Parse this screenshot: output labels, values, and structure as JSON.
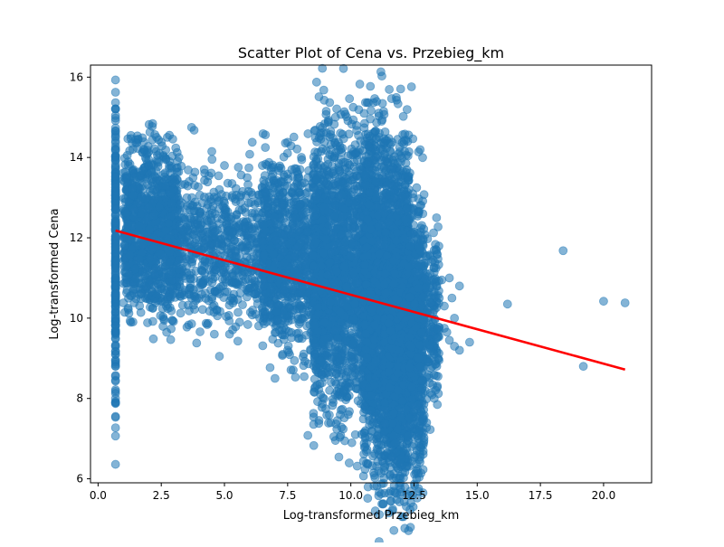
{
  "chart_data": {
    "type": "scatter",
    "title": "Scatter Plot of Cena vs. Przebieg_km",
    "xlabel": "Log-transformed Przebieg_km",
    "ylabel": "Log-transformed Cena",
    "xlim": [
      -0.3,
      21.9
    ],
    "ylim": [
      5.9,
      16.3
    ],
    "x_ticks": [
      0.0,
      2.5,
      5.0,
      7.5,
      10.0,
      12.5,
      15.0,
      17.5,
      20.0
    ],
    "x_tick_labels": [
      "0.0",
      "2.5",
      "5.0",
      "7.5",
      "10.0",
      "12.5",
      "15.0",
      "17.5",
      "20.0"
    ],
    "y_ticks": [
      6,
      8,
      10,
      12,
      14,
      16
    ],
    "y_tick_labels": [
      "6",
      "8",
      "10",
      "12",
      "14",
      "16"
    ],
    "grid": false,
    "point_color": "#1f77b4",
    "point_alpha": 0.55,
    "line_color": "#ff0000",
    "regression_line": {
      "x": [
        0.69,
        20.85
      ],
      "y": [
        12.18,
        8.72
      ]
    },
    "dense_regions": [
      {
        "x": [
          0.69,
          0.69
        ],
        "y": [
          8.9,
          14.3
        ],
        "count": 260
      },
      {
        "x": [
          1.0,
          3.2
        ],
        "y": [
          10.6,
          13.7
        ],
        "count": 1100
      },
      {
        "x": [
          3.2,
          7.0
        ],
        "y": [
          10.4,
          13.0
        ],
        "count": 700
      },
      {
        "x": [
          6.5,
          9.0
        ],
        "y": [
          9.8,
          13.3
        ],
        "count": 1000
      },
      {
        "x": [
          8.5,
          11.0
        ],
        "y": [
          8.6,
          13.8
        ],
        "count": 1900
      },
      {
        "x": [
          10.5,
          12.3
        ],
        "y": [
          7.2,
          13.6
        ],
        "count": 1900
      },
      {
        "x": [
          11.3,
          12.9
        ],
        "y": [
          6.8,
          12.4
        ],
        "count": 1400
      },
      {
        "x": [
          12.3,
          13.5
        ],
        "y": [
          8.5,
          11.4
        ],
        "count": 350
      }
    ],
    "points": [
      {
        "x": 0.69,
        "y": 6.36
      },
      {
        "x": 12.4,
        "y": 15.76
      },
      {
        "x": 3.7,
        "y": 14.75
      },
      {
        "x": 3.8,
        "y": 14.68
      },
      {
        "x": 1.3,
        "y": 14.55
      },
      {
        "x": 1.3,
        "y": 14.47
      },
      {
        "x": 2.5,
        "y": 14.38
      },
      {
        "x": 1.8,
        "y": 14.2
      },
      {
        "x": 4.5,
        "y": 14.15
      },
      {
        "x": 6.1,
        "y": 14.38
      },
      {
        "x": 7.5,
        "y": 14.38
      },
      {
        "x": 8.9,
        "y": 14.62
      },
      {
        "x": 10.3,
        "y": 14.55
      },
      {
        "x": 6.0,
        "y": 14.08
      },
      {
        "x": 3.2,
        "y": 14.0
      },
      {
        "x": 2.0,
        "y": 13.95
      },
      {
        "x": 4.2,
        "y": 13.7
      },
      {
        "x": 5.0,
        "y": 13.8
      },
      {
        "x": 5.9,
        "y": 13.5
      },
      {
        "x": 6.5,
        "y": 13.8
      },
      {
        "x": 1.2,
        "y": 13.8
      },
      {
        "x": 3.6,
        "y": 13.4
      },
      {
        "x": 4.8,
        "y": 13.2
      },
      {
        "x": 5.3,
        "y": 13.35
      },
      {
        "x": 6.6,
        "y": 13.55
      },
      {
        "x": 9.6,
        "y": 14.2
      },
      {
        "x": 11.0,
        "y": 14.0
      },
      {
        "x": 11.6,
        "y": 13.7
      },
      {
        "x": 3.3,
        "y": 10.6
      },
      {
        "x": 2.7,
        "y": 10.3
      },
      {
        "x": 3.9,
        "y": 9.38
      },
      {
        "x": 4.8,
        "y": 9.05
      },
      {
        "x": 4.6,
        "y": 9.6
      },
      {
        "x": 5.2,
        "y": 9.6
      },
      {
        "x": 5.6,
        "y": 9.9
      },
      {
        "x": 4.7,
        "y": 10.2
      },
      {
        "x": 6.4,
        "y": 10.0
      },
      {
        "x": 7.0,
        "y": 8.5
      },
      {
        "x": 7.3,
        "y": 9.1
      },
      {
        "x": 7.5,
        "y": 9.2
      },
      {
        "x": 8.3,
        "y": 7.08
      },
      {
        "x": 9.6,
        "y": 7.08
      },
      {
        "x": 8.8,
        "y": 8.1
      },
      {
        "x": 9.3,
        "y": 7.9
      },
      {
        "x": 9.9,
        "y": 7.6
      },
      {
        "x": 10.9,
        "y": 7.4
      },
      {
        "x": 11.2,
        "y": 6.55
      },
      {
        "x": 12.0,
        "y": 6.5
      },
      {
        "x": 13.0,
        "y": 7.4
      },
      {
        "x": 13.5,
        "y": 10.5
      },
      {
        "x": 13.7,
        "y": 10.3
      },
      {
        "x": 14.0,
        "y": 10.5
      },
      {
        "x": 14.1,
        "y": 10.0
      },
      {
        "x": 14.3,
        "y": 10.8
      },
      {
        "x": 14.1,
        "y": 9.3
      },
      {
        "x": 14.3,
        "y": 9.2
      },
      {
        "x": 14.7,
        "y": 9.4
      },
      {
        "x": 13.8,
        "y": 9.65
      },
      {
        "x": 13.9,
        "y": 9.45
      },
      {
        "x": 13.3,
        "y": 8.0
      },
      {
        "x": 13.4,
        "y": 8.8
      },
      {
        "x": 13.7,
        "y": 9.75
      },
      {
        "x": 13.6,
        "y": 10.95
      },
      {
        "x": 13.9,
        "y": 11.0
      },
      {
        "x": 13.2,
        "y": 11.4
      },
      {
        "x": 16.2,
        "y": 10.35
      },
      {
        "x": 18.4,
        "y": 11.68
      },
      {
        "x": 19.2,
        "y": 8.8
      },
      {
        "x": 20.0,
        "y": 10.42
      },
      {
        "x": 20.85,
        "y": 10.38
      }
    ]
  }
}
